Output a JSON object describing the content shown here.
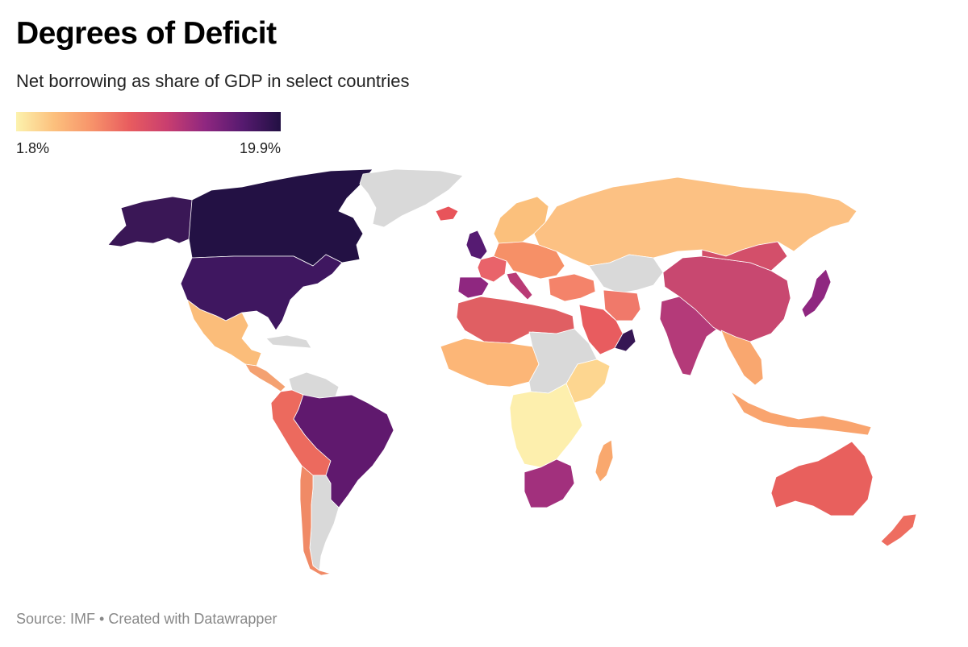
{
  "header": {
    "title": "Degrees of Deficit",
    "subtitle": "Net borrowing as share of GDP in select countries"
  },
  "legend": {
    "min_label": "1.8%",
    "max_label": "19.9%",
    "min_value": 1.8,
    "max_value": 19.9,
    "colors": [
      "#fcf2ad",
      "#fcc07d",
      "#f7936a",
      "#e85c5f",
      "#c93e6f",
      "#8f2780",
      "#561a6f",
      "#221043"
    ]
  },
  "map": {
    "no_data_color": "#d9d9d9",
    "regions": [
      {
        "name": "canada",
        "color": "#231144"
      },
      {
        "name": "alaska",
        "color": "#3a1756"
      },
      {
        "name": "united-states",
        "color": "#3f1760"
      },
      {
        "name": "greenland",
        "color": "#d9d9d9"
      },
      {
        "name": "mexico",
        "color": "#fbbd7a"
      },
      {
        "name": "central-america",
        "color": "#f4a171"
      },
      {
        "name": "caribbean",
        "color": "#d9d9d9"
      },
      {
        "name": "colombia-peru-bolivia",
        "color": "#ec6a5e"
      },
      {
        "name": "brazil",
        "color": "#60196e"
      },
      {
        "name": "venezuela",
        "color": "#d9d9d9"
      },
      {
        "name": "argentina",
        "color": "#d9d9d9"
      },
      {
        "name": "chile",
        "color": "#f08a66"
      },
      {
        "name": "iceland",
        "color": "#e8545a"
      },
      {
        "name": "united-kingdom",
        "color": "#561b72"
      },
      {
        "name": "spain",
        "color": "#8f2780"
      },
      {
        "name": "france",
        "color": "#e9636a"
      },
      {
        "name": "italy",
        "color": "#b93a75"
      },
      {
        "name": "central-europe",
        "color": "#f69067"
      },
      {
        "name": "scandinavia",
        "color": "#fbc07c"
      },
      {
        "name": "russia",
        "color": "#fcc183"
      },
      {
        "name": "north-africa",
        "color": "#e05f63"
      },
      {
        "name": "west-africa",
        "color": "#fcb677"
      },
      {
        "name": "central-africa",
        "color": "#d9d9d9"
      },
      {
        "name": "east-africa",
        "color": "#fdd690"
      },
      {
        "name": "southern-central-africa",
        "color": "#fdefad"
      },
      {
        "name": "south-africa",
        "color": "#a2307d"
      },
      {
        "name": "madagascar",
        "color": "#f9a86e"
      },
      {
        "name": "middle-east",
        "color": "#f4836a"
      },
      {
        "name": "saudi-arabia",
        "color": "#e85c5f"
      },
      {
        "name": "oman",
        "color": "#361654"
      },
      {
        "name": "iran",
        "color": "#f0796a"
      },
      {
        "name": "central-asia",
        "color": "#d9d9d9"
      },
      {
        "name": "india",
        "color": "#b43a79"
      },
      {
        "name": "china",
        "color": "#c84870"
      },
      {
        "name": "mongolia",
        "color": "#d34f6a"
      },
      {
        "name": "southeast-asia",
        "color": "#f9a76f"
      },
      {
        "name": "indonesia",
        "color": "#f9a46e"
      },
      {
        "name": "japan",
        "color": "#8f2780"
      },
      {
        "name": "australia",
        "color": "#e8605d"
      },
      {
        "name": "new-zealand",
        "color": "#ee6d60"
      }
    ]
  },
  "footer": {
    "source": "Source: IMF",
    "separator": "•",
    "credit": "Created with Datawrapper"
  }
}
